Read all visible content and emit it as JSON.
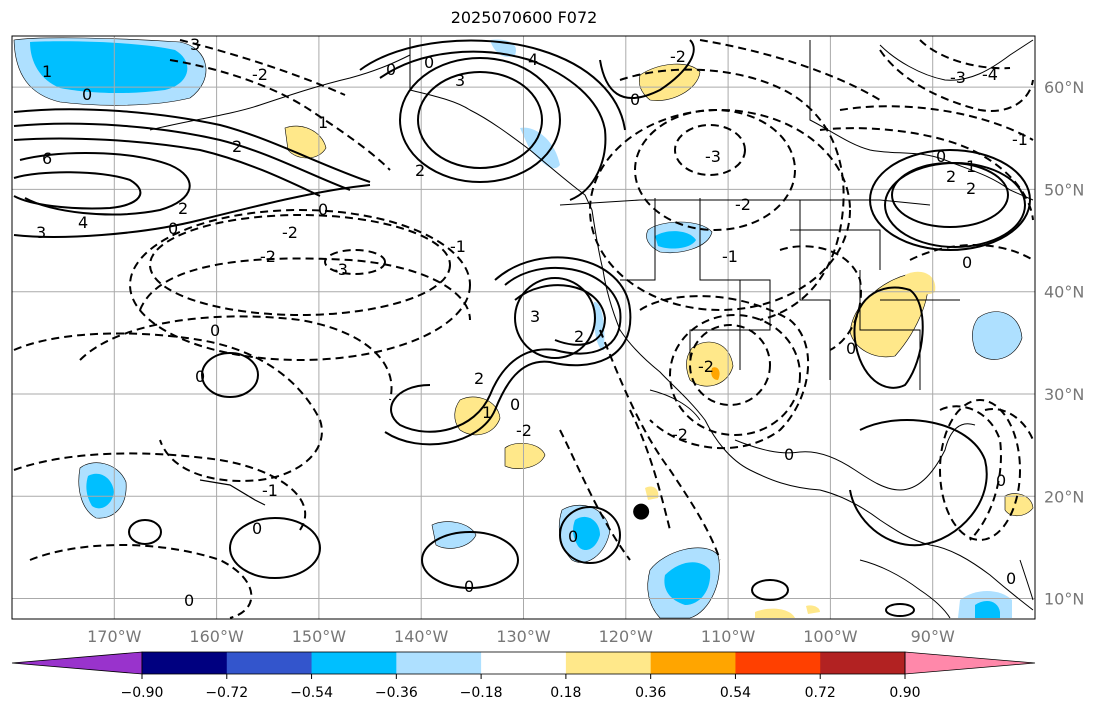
{
  "title": "2025070600 F072",
  "map": {
    "lon_range": [
      -180,
      -80
    ],
    "lat_range": [
      8,
      65
    ],
    "lon_ticks": [
      "170°W",
      "160°W",
      "150°W",
      "140°W",
      "130°W",
      "120°W",
      "110°W",
      "100°W",
      "90°W"
    ],
    "lat_ticks": [
      "60°N",
      "50°N",
      "40°N",
      "30°N",
      "20°N",
      "10°N"
    ],
    "grid": true,
    "marker": {
      "lon": -118.5,
      "lat": 18.5,
      "shape": "filled-circle",
      "color": "#000000"
    },
    "contour_style": {
      "positive": "solid",
      "negative": "dashed",
      "color": "#000000"
    },
    "contour_labels": [
      "0",
      "1",
      "2",
      "3",
      "4",
      "6",
      "-1",
      "-2",
      "-3",
      "-4"
    ]
  },
  "colorbar": {
    "ticks": [
      "−0.90",
      "−0.72",
      "−0.54",
      "−0.36",
      "−0.18",
      "0.18",
      "0.36",
      "0.54",
      "0.72",
      "0.90"
    ],
    "colors": [
      "#9933cc",
      "#000080",
      "#3355cc",
      "#00bfff",
      "#aee0ff",
      "#ffffff",
      "#ffe88a",
      "#ffa500",
      "#ff4000",
      "#b22222",
      "#ff88aa"
    ],
    "extend": "both"
  }
}
